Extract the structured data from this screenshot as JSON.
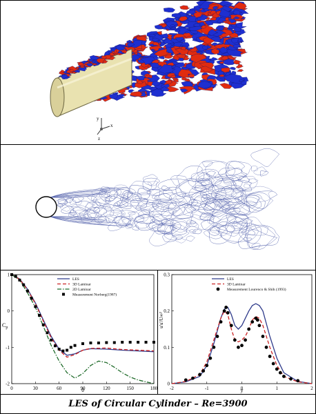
{
  "caption": "LES of Circular Cylinder – Re=3900",
  "axes_triad": {
    "x": "x",
    "y": "y",
    "z": "z"
  },
  "colors": {
    "iso_blue": "#1e2fd0",
    "iso_red": "#e02b10",
    "cylinder": "#e9e2b0",
    "contour": "#4b5aa8",
    "les": "#2e3a8a",
    "laminar3d": "#cc2222",
    "laminar2d": "#1f6b2a",
    "measurement": "#000000"
  },
  "chart_data": [
    {
      "type": "line",
      "xlabel": "θ",
      "ylabel": "C",
      "ylabel_sub": "p",
      "xlim": [
        0,
        180
      ],
      "ylim": [
        -2,
        1
      ],
      "xticks": [
        0,
        30,
        60,
        90,
        120,
        150,
        180
      ],
      "yticks": [
        1,
        0,
        -1,
        -2
      ],
      "legend_position": "top-right",
      "series": [
        {
          "name": "LES",
          "style": "solid",
          "x": [
            0,
            10,
            20,
            30,
            40,
            50,
            60,
            70,
            80,
            90,
            100,
            120,
            140,
            160,
            180
          ],
          "y": [
            1.0,
            0.88,
            0.6,
            0.22,
            -0.25,
            -0.7,
            -1.05,
            -1.22,
            -1.18,
            -1.08,
            -1.04,
            -1.05,
            -1.08,
            -1.1,
            -1.12
          ]
        },
        {
          "name": "3D Laminar",
          "style": "dashed",
          "x": [
            0,
            10,
            20,
            30,
            40,
            50,
            60,
            70,
            80,
            90,
            100,
            120,
            140,
            160,
            180
          ],
          "y": [
            1.0,
            0.87,
            0.58,
            0.2,
            -0.28,
            -0.74,
            -1.08,
            -1.27,
            -1.2,
            -1.08,
            -1.03,
            -1.02,
            -1.06,
            -1.08,
            -1.1
          ]
        },
        {
          "name": "2D Laminar",
          "style": "dashdot",
          "x": [
            0,
            10,
            20,
            30,
            40,
            50,
            60,
            70,
            80,
            90,
            100,
            110,
            120,
            130,
            140,
            150,
            160,
            170,
            180
          ],
          "y": [
            1.0,
            0.85,
            0.5,
            0.1,
            -0.42,
            -0.95,
            -1.38,
            -1.7,
            -1.85,
            -1.72,
            -1.5,
            -1.38,
            -1.42,
            -1.55,
            -1.7,
            -1.82,
            -1.9,
            -1.95,
            -2.0
          ]
        },
        {
          "name": "Measurement Norberg(1987)",
          "style": "squares",
          "x": [
            0,
            5,
            10,
            15,
            20,
            25,
            30,
            35,
            40,
            45,
            50,
            55,
            60,
            65,
            70,
            75,
            80,
            90,
            100,
            110,
            120,
            130,
            140,
            150,
            160,
            170,
            180
          ],
          "y": [
            1.0,
            0.95,
            0.85,
            0.72,
            0.55,
            0.35,
            0.12,
            -0.12,
            -0.38,
            -0.6,
            -0.8,
            -0.96,
            -1.05,
            -1.1,
            -1.08,
            -1.0,
            -0.95,
            -0.9,
            -0.88,
            -0.88,
            -0.87,
            -0.87,
            -0.86,
            -0.86,
            -0.86,
            -0.86,
            -0.86
          ]
        }
      ]
    },
    {
      "type": "line",
      "xlabel": "y",
      "ylabel": "u'u'/U∞²",
      "xlim": [
        -2,
        2
      ],
      "ylim": [
        0,
        0.3
      ],
      "xticks": [
        -2,
        -1,
        0,
        1,
        2
      ],
      "yticks": [
        0,
        0.1,
        0.2,
        0.3
      ],
      "legend_position": "top-right",
      "series": [
        {
          "name": "LES",
          "style": "solid",
          "x": [
            -2,
            -1.6,
            -1.2,
            -1.0,
            -0.8,
            -0.6,
            -0.5,
            -0.4,
            -0.3,
            -0.2,
            -0.1,
            0,
            0.1,
            0.2,
            0.3,
            0.4,
            0.5,
            0.6,
            0.8,
            1.0,
            1.2,
            1.6,
            2
          ],
          "y": [
            0.0,
            0.005,
            0.02,
            0.05,
            0.11,
            0.18,
            0.205,
            0.21,
            0.19,
            0.16,
            0.15,
            0.16,
            0.18,
            0.2,
            0.215,
            0.22,
            0.215,
            0.2,
            0.13,
            0.07,
            0.03,
            0.006,
            0.0
          ]
        },
        {
          "name": "3D Laminar",
          "style": "dashed",
          "x": [
            -2,
            -1.6,
            -1.2,
            -1.0,
            -0.8,
            -0.6,
            -0.5,
            -0.4,
            -0.3,
            -0.2,
            -0.1,
            0,
            0.1,
            0.2,
            0.3,
            0.4,
            0.5,
            0.6,
            0.8,
            1.0,
            1.2,
            1.6,
            2
          ],
          "y": [
            0.0,
            0.006,
            0.025,
            0.06,
            0.12,
            0.18,
            0.2,
            0.19,
            0.15,
            0.12,
            0.115,
            0.12,
            0.13,
            0.15,
            0.175,
            0.185,
            0.18,
            0.16,
            0.1,
            0.05,
            0.02,
            0.005,
            0.0
          ]
        },
        {
          "name": "Measurement Lourenco & Shih (1993)",
          "style": "circles",
          "x": [
            -1.6,
            -1.4,
            -1.2,
            -1.1,
            -1.0,
            -0.9,
            -0.8,
            -0.7,
            -0.6,
            -0.5,
            -0.45,
            -0.4,
            -0.3,
            -0.2,
            -0.1,
            0,
            0.1,
            0.2,
            0.3,
            0.4,
            0.45,
            0.5,
            0.6,
            0.7,
            0.8,
            0.9,
            1.0,
            1.1,
            1.2,
            1.4,
            1.6
          ],
          "y": [
            0.01,
            0.015,
            0.025,
            0.035,
            0.05,
            0.07,
            0.1,
            0.13,
            0.17,
            0.2,
            0.21,
            0.195,
            0.16,
            0.12,
            0.1,
            0.105,
            0.12,
            0.15,
            0.17,
            0.18,
            0.175,
            0.16,
            0.13,
            0.1,
            0.075,
            0.055,
            0.04,
            0.03,
            0.02,
            0.013,
            0.008
          ]
        }
      ]
    }
  ]
}
